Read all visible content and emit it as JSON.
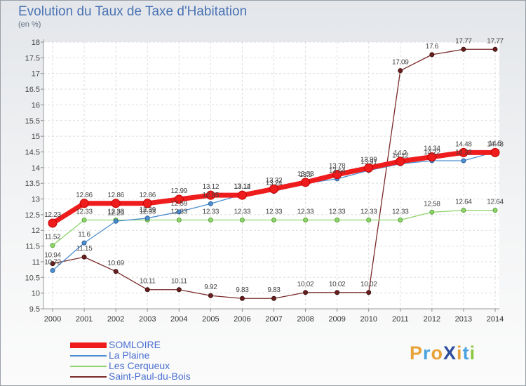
{
  "header": {
    "title": "Evolution du Taux de Taxe d'Habitation",
    "subtitle": "(en %)"
  },
  "logo": {
    "text": "ProXiti",
    "colors": [
      "#e8a23a",
      "#4aa3df",
      "#e8a23a",
      "#2f4d9e",
      "#e8a23a",
      "#4aa3df",
      "#8dc63f"
    ]
  },
  "chart_data": {
    "type": "line",
    "title": "Evolution du Taux de Taxe d'Habitation",
    "subtitle": "(en %)",
    "xlabel": "",
    "ylabel": "",
    "x": [
      "2000",
      "2001",
      "2002",
      "2003",
      "2004",
      "2005",
      "2006",
      "2007",
      "2008",
      "2009",
      "2010",
      "2011",
      "2012",
      "2013",
      "2014"
    ],
    "ylim": [
      9.5,
      18
    ],
    "yticks": [
      "9.5",
      "10",
      "10.5",
      "11",
      "11.5",
      "12",
      "12.5",
      "13",
      "13.5",
      "14",
      "14.5",
      "15",
      "15.5",
      "16",
      "16.5",
      "17",
      "17.5",
      "18"
    ],
    "grid": true,
    "legend_position": "bottom-left",
    "series": [
      {
        "name": "SOMLOIRE",
        "color": "#ee1c1c",
        "values": [
          12.23,
          12.86,
          12.86,
          12.86,
          12.99,
          13.12,
          13.12,
          13.32,
          13.53,
          13.78,
          13.99,
          14.2,
          14.34,
          14.48,
          14.48
        ],
        "labels": [
          "12.23",
          "12.86",
          "12.86",
          "12.86",
          "12.99",
          "13.12",
          "13.12",
          "13.32",
          "13.53",
          "13.78",
          "13.99",
          "14.2",
          "14.34",
          "14.48",
          "14.48"
        ]
      },
      {
        "name": "La Plaine",
        "color": "#4d8fd1",
        "values": [
          10.72,
          11.6,
          12.29,
          12.39,
          12.59,
          12.85,
          13.14,
          13.24,
          13.5,
          13.64,
          13.91,
          14.12,
          14.22,
          14.22,
          14.5
        ],
        "labels": [
          "10.72",
          "11.6",
          "12.29",
          "12.39",
          "12.59",
          "12.85",
          "13.14",
          "13.24",
          "13.5",
          "13.64",
          "13.91",
          "14.12",
          "14.22",
          "14.22",
          "14.5"
        ]
      },
      {
        "name": "Les Cerqueux",
        "color": "#8fd56b",
        "values": [
          11.52,
          12.33,
          12.33,
          12.33,
          12.33,
          12.33,
          12.33,
          12.33,
          12.33,
          12.33,
          12.33,
          12.33,
          12.58,
          12.64,
          12.64
        ],
        "labels": [
          "11.52",
          "12.33",
          "12.33",
          "12.33",
          "12.33",
          "12.33",
          "12.33",
          "12.33",
          "12.33",
          "12.33",
          "12.33",
          "12.33",
          "12.58",
          "12.64",
          "12.64"
        ]
      },
      {
        "name": "Saint-Paul-du-Bois",
        "color": "#7a2a2a",
        "values": [
          10.94,
          11.15,
          10.69,
          10.11,
          10.11,
          9.92,
          9.83,
          9.83,
          10.02,
          10.02,
          10.02,
          17.09,
          17.6,
          17.77,
          17.77
        ],
        "labels": [
          "10.94",
          "11.15",
          "10.69",
          "10.11",
          "10.11",
          "9.92",
          "9.83",
          "9.83",
          "10.02",
          "10.02",
          "10.02",
          "17.09",
          "17.6",
          "17.77",
          "17.77"
        ]
      }
    ]
  }
}
